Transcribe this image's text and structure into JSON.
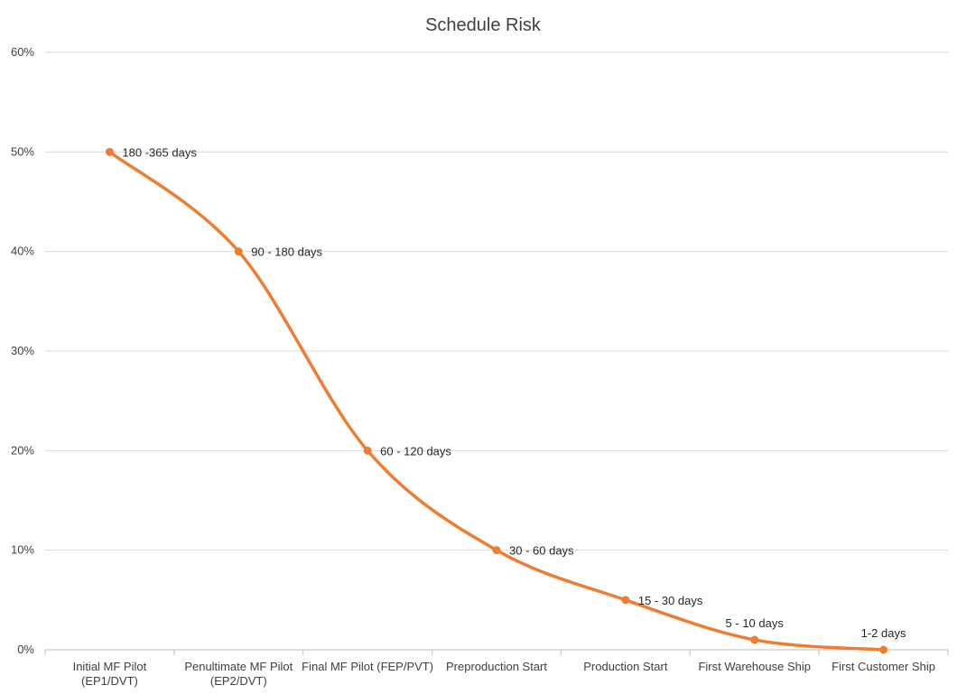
{
  "chart_data": {
    "type": "line",
    "title": "Schedule Risk",
    "xlabel": "",
    "ylabel": "",
    "categories": [
      [
        "Initial MF Pilot",
        "(EP1/DVT)"
      ],
      [
        "Penultimate MF Pilot",
        "(EP2/DVT)"
      ],
      [
        "Final MF Pilot (FEP/PVT)"
      ],
      [
        "Preproduction Start"
      ],
      [
        "Production Start"
      ],
      [
        "First Warehouse Ship"
      ],
      [
        "First Customer Ship"
      ]
    ],
    "series": [
      {
        "values": [
          50,
          40,
          20,
          10,
          5,
          1,
          0
        ],
        "data_labels": [
          "180 -365 days",
          "90 - 180 days",
          "60 - 120 days",
          "30 - 60 days",
          "15 - 30 days",
          "5 - 10 days",
          "1-2 days"
        ],
        "color": "#ed7d31"
      }
    ],
    "ylim": [
      0,
      60
    ],
    "yticks": [
      "0%",
      "10%",
      "20%",
      "30%",
      "40%",
      "50%",
      "60%"
    ],
    "grid": true,
    "smooth": true,
    "legend": "none"
  }
}
